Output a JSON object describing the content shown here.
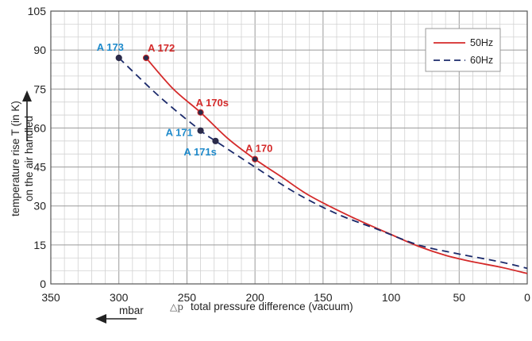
{
  "chart_data": {
    "type": "line",
    "xlim": [
      350,
      0
    ],
    "ylim": [
      0,
      105
    ],
    "x_ticks": [
      350,
      300,
      250,
      200,
      150,
      100,
      50,
      0
    ],
    "y_ticks": [
      0,
      15,
      30,
      45,
      60,
      75,
      90,
      105
    ],
    "xlabel": "total pressure difference (vacuum)",
    "xlabel_symbol": "△p",
    "xunit": "mbar",
    "ylabel_line1": "temperature rise T (in K)",
    "ylabel_line2": "on the air handled",
    "grid": true,
    "legend_position": "top-right",
    "series": [
      {
        "name": "50Hz",
        "style": "solid",
        "color": "#d42a2a",
        "x": [
          280,
          260,
          240,
          220,
          200,
          180,
          160,
          130,
          100,
          80,
          60,
          40,
          20,
          0
        ],
        "y": [
          87,
          75,
          66,
          56,
          48,
          41,
          34,
          26,
          19,
          14.5,
          11,
          8.5,
          6.5,
          4
        ]
      },
      {
        "name": "60Hz",
        "style": "dashed",
        "color": "#1b2a6b",
        "x": [
          300,
          270,
          240,
          229,
          200,
          170,
          140,
          110,
          80,
          50,
          20,
          0
        ],
        "y": [
          87,
          72,
          59,
          55,
          45,
          35,
          27,
          21,
          15,
          11.5,
          8.5,
          6
        ]
      }
    ],
    "points": [
      {
        "label": "A 172",
        "series": "50Hz",
        "x": 280,
        "y": 87
      },
      {
        "label": "A 170s",
        "series": "50Hz",
        "x": 240,
        "y": 66
      },
      {
        "label": "A 170",
        "series": "50Hz",
        "x": 200,
        "y": 48
      },
      {
        "label": "A 173",
        "series": "60Hz",
        "x": 300,
        "y": 87
      },
      {
        "label": "A 171",
        "series": "60Hz",
        "x": 240,
        "y": 59
      },
      {
        "label": "A 171s",
        "series": "60Hz",
        "x": 229,
        "y": 55
      }
    ],
    "label_colors": {
      "50Hz": "#d42a2a",
      "60Hz": "#1e8acb"
    },
    "point_color": "#2b2b4a"
  }
}
